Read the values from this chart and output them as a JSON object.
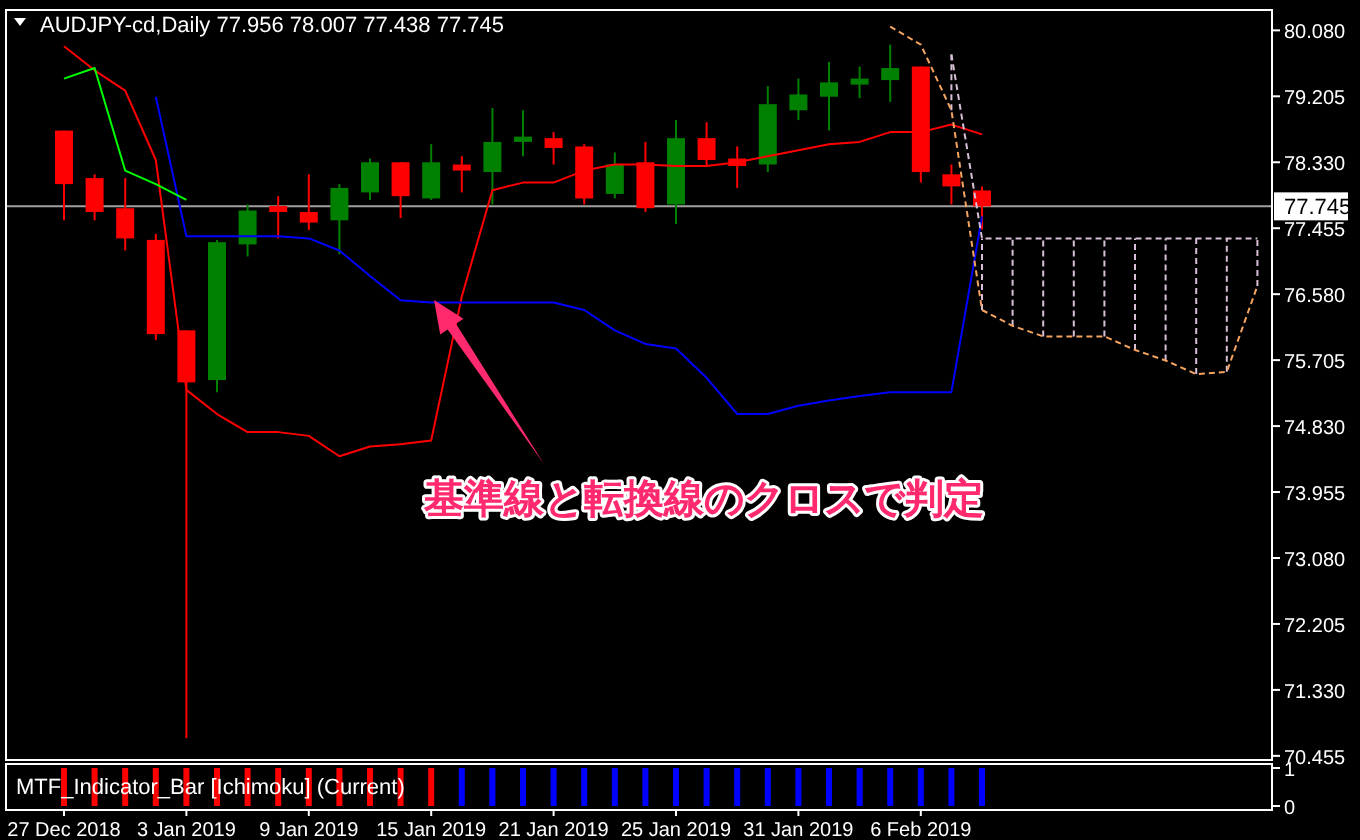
{
  "chart_data": [
    {
      "type": "candlestick",
      "title": "AUDJPY-cd,Daily  77.956 78.007 77.438 77.745",
      "categories": [
        null,
        null,
        null,
        null,
        null,
        null,
        null,
        null,
        null,
        null,
        null,
        null,
        null,
        null,
        null,
        null,
        null,
        null,
        null,
        null,
        null,
        null,
        null,
        null,
        null,
        null,
        null,
        null,
        null,
        null,
        null,
        null,
        null,
        null,
        null,
        null,
        null,
        null,
        null,
        null
      ],
      "ohlc": [
        [
          78.75,
          78.75,
          77.56,
          78.04
        ],
        [
          78.12,
          78.17,
          77.56,
          77.67
        ],
        [
          77.72,
          78.12,
          77.16,
          77.32
        ],
        [
          77.3,
          77.38,
          75.97,
          76.05
        ],
        [
          76.1,
          76.1,
          70.69,
          75.41
        ],
        [
          75.44,
          77.3,
          75.28,
          77.27
        ],
        [
          77.24,
          77.77,
          77.08,
          77.69
        ],
        [
          77.75,
          77.88,
          77.32,
          77.67
        ],
        [
          77.67,
          78.17,
          77.43,
          77.53
        ],
        [
          77.56,
          78.04,
          77.11,
          77.99
        ],
        [
          77.93,
          78.38,
          77.83,
          78.33
        ],
        [
          78.33,
          78.33,
          77.59,
          77.88
        ],
        [
          77.85,
          78.57,
          77.83,
          78.33
        ],
        [
          78.3,
          78.41,
          77.93,
          78.22
        ],
        [
          78.2,
          79.05,
          77.77,
          78.6
        ],
        [
          78.6,
          79.02,
          78.41,
          78.67
        ],
        [
          78.65,
          78.73,
          78.3,
          78.52
        ],
        [
          78.54,
          78.57,
          77.77,
          77.85
        ],
        [
          77.91,
          78.46,
          77.85,
          78.3
        ],
        [
          78.33,
          78.6,
          77.67,
          77.72
        ],
        [
          77.77,
          78.89,
          77.51,
          78.65
        ],
        [
          78.65,
          78.86,
          78.28,
          78.36
        ],
        [
          78.38,
          78.54,
          77.99,
          78.28
        ],
        [
          78.3,
          79.34,
          78.2,
          79.1
        ],
        [
          79.02,
          79.44,
          78.89,
          79.23
        ],
        [
          79.2,
          79.66,
          78.75,
          79.39
        ],
        [
          79.36,
          79.6,
          79.18,
          79.44
        ],
        [
          79.42,
          79.89,
          79.13,
          79.58
        ],
        [
          79.6,
          79.6,
          78.06,
          78.2
        ],
        [
          78.17,
          78.3,
          77.77,
          78.01
        ],
        [
          77.956,
          78.007,
          77.438,
          77.745
        ],
        null,
        null,
        null,
        null,
        null,
        null,
        null,
        null,
        null
      ],
      "colors": [
        "#ff0000",
        "#ff0000",
        "#ff0000",
        "#ff0000",
        "#ff0000",
        "#008000",
        "#008000",
        "#ff0000",
        "#ff0000",
        "#008000",
        "#008000",
        "#ff0000",
        "#008000",
        "#ff0000",
        "#008000",
        "#008000",
        "#ff0000",
        "#ff0000",
        "#008000",
        "#ff0000",
        "#008000",
        "#ff0000",
        "#ff0000",
        "#008000",
        "#008000",
        "#008000",
        "#008000",
        "#008000",
        "#ff0000",
        "#ff0000",
        "#ff0000",
        null,
        null,
        null,
        null,
        null,
        null,
        null,
        null,
        null
      ],
      "series": [
        {
          "type": "line",
          "color": "#ff0000",
          "values": [
            79.87,
            79.55,
            79.28,
            78.36,
            75.31,
            74.99,
            74.75,
            74.75,
            74.7,
            74.43,
            74.56,
            74.59,
            74.64,
            76.55,
            77.96,
            78.06,
            78.06,
            78.22,
            78.3,
            78.3,
            78.28,
            78.28,
            78.33,
            78.41,
            78.49,
            78.57,
            78.6,
            78.73,
            78.73,
            78.83,
            78.7,
            null,
            null,
            null,
            null,
            null,
            null,
            null,
            null,
            null
          ]
        },
        {
          "type": "line",
          "color": "#0000ff",
          "values": [
            null,
            null,
            null,
            79.2,
            77.35,
            77.35,
            77.35,
            77.35,
            77.32,
            77.16,
            76.82,
            76.5,
            76.47,
            76.47,
            76.47,
            76.47,
            76.47,
            76.37,
            76.1,
            75.92,
            75.86,
            75.47,
            74.99,
            74.99,
            75.1,
            75.17,
            75.23,
            75.28,
            75.28,
            75.28,
            77.61,
            null,
            null,
            null,
            null,
            null,
            null,
            null,
            null,
            null
          ]
        },
        {
          "type": "line",
          "color": "#00ff00",
          "values": [
            79.44,
            79.58,
            78.22,
            78.04,
            77.83,
            null,
            null,
            null,
            null,
            null,
            null,
            null,
            null,
            null,
            null,
            null,
            null,
            null,
            null,
            null,
            null,
            null,
            null,
            null,
            null,
            null,
            null,
            null,
            null,
            null,
            null,
            null,
            null,
            null,
            null,
            null,
            null,
            null,
            null,
            null
          ]
        },
        {
          "type": "line",
          "color": "#f4a460",
          "line_style": "dashed",
          "values": [
            null,
            null,
            null,
            null,
            null,
            null,
            null,
            null,
            null,
            null,
            null,
            null,
            null,
            null,
            null,
            null,
            null,
            null,
            null,
            null,
            null,
            null,
            null,
            null,
            null,
            null,
            null,
            80.13,
            79.89,
            79.02,
            76.37,
            76.16,
            76.02,
            76.02,
            76.02,
            75.84,
            75.7,
            75.52,
            75.55,
            76.69
          ]
        },
        {
          "type": "line",
          "color": "#d8bfd8",
          "line_style": "dashed",
          "values": [
            null,
            null,
            null,
            null,
            null,
            null,
            null,
            null,
            null,
            null,
            null,
            null,
            null,
            null,
            null,
            null,
            null,
            null,
            null,
            null,
            null,
            null,
            null,
            null,
            null,
            null,
            null,
            null,
            null,
            79.76,
            77.32,
            77.32,
            77.32,
            77.32,
            77.32,
            77.32,
            77.32,
            77.32,
            77.32,
            77.32
          ]
        }
      ],
      "ylim": [
        70.4,
        80.35
      ],
      "yticks": [
        {
          "value": 80.08,
          "label": "80.080"
        },
        {
          "value": 79.205,
          "label": "79.205"
        },
        {
          "value": 78.33,
          "label": "78.330"
        },
        {
          "value": 77.455,
          "label": "77.455"
        },
        {
          "value": 76.58,
          "label": "76.580"
        },
        {
          "value": 75.705,
          "label": "75.705"
        },
        {
          "value": 74.83,
          "label": "74.830"
        },
        {
          "value": 73.955,
          "label": "73.955"
        },
        {
          "value": 73.08,
          "label": "73.080"
        },
        {
          "value": 72.205,
          "label": "72.205"
        },
        {
          "value": 71.33,
          "label": "71.330"
        },
        {
          "value": 70.455,
          "label": "70.455"
        }
      ],
      "ref_lines": [
        {
          "axis": "y",
          "value": 77.745,
          "label": "77.745",
          "color": "#a0a0a0"
        }
      ],
      "annotations": [
        "基準線と転換線のクロスで判定"
      ],
      "tick_labels": "y"
    },
    {
      "type": "bar",
      "title": "MTF_Indicator_Bar [Ichimoku] (Current)",
      "categories": [
        "27 Dec 2018",
        null,
        null,
        null,
        "3 Jan 2019",
        null,
        null,
        null,
        "9 Jan 2019",
        null,
        null,
        null,
        "15 Jan 2019",
        null,
        null,
        null,
        "21 Jan 2019",
        null,
        null,
        null,
        "25 Jan 2019",
        null,
        null,
        null,
        "31 Jan 2019",
        null,
        null,
        null,
        "6 Feb 2019",
        null,
        null,
        null,
        null,
        null,
        null,
        null,
        null,
        null,
        null,
        null
      ],
      "values": [
        1,
        1,
        1,
        1,
        1,
        1,
        1,
        1,
        1,
        1,
        1,
        1,
        1,
        1,
        1,
        1,
        1,
        1,
        1,
        1,
        1,
        1,
        1,
        1,
        1,
        1,
        1,
        1,
        1,
        1,
        1,
        null,
        null,
        null,
        null,
        null,
        null,
        null,
        null,
        null
      ],
      "colors": [
        "#ff0000",
        "#ff0000",
        "#ff0000",
        "#ff0000",
        "#ff0000",
        "#ff0000",
        "#ff0000",
        "#ff0000",
        "#ff0000",
        "#ff0000",
        "#ff0000",
        "#ff0000",
        "#ff0000",
        "#0000ff",
        "#0000ff",
        "#0000ff",
        "#0000ff",
        "#0000ff",
        "#0000ff",
        "#0000ff",
        "#0000ff",
        "#0000ff",
        "#0000ff",
        "#0000ff",
        "#0000ff",
        "#0000ff",
        "#0000ff",
        "#0000ff",
        "#0000ff",
        "#0000ff",
        "#0000ff",
        null,
        null,
        null,
        null,
        null,
        null,
        null,
        null,
        null
      ],
      "ylim": [
        0,
        1
      ],
      "yticks": [
        0,
        1
      ]
    }
  ]
}
